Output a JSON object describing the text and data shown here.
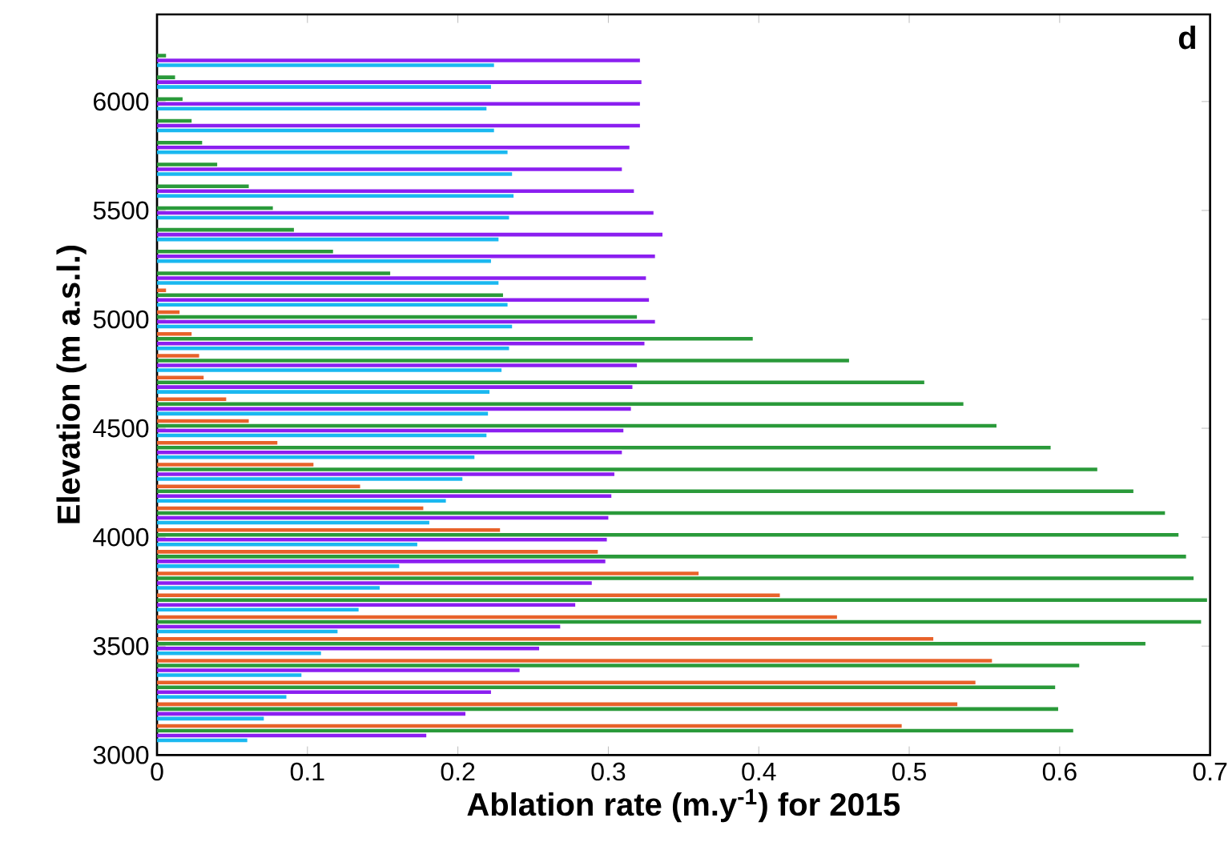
{
  "chart_data": {
    "type": "bar",
    "orientation": "horizontal",
    "xlabel": "Ablation rate (m.y$^{-1}$) for 2015",
    "ylabel": "Elevation (m a.s.l.)",
    "annotations": [
      "d"
    ],
    "x": [
      3100,
      3200,
      3300,
      3400,
      3500,
      3600,
      3700,
      3800,
      3900,
      4000,
      4100,
      4200,
      4300,
      4400,
      4500,
      4600,
      4700,
      4800,
      4900,
      5000,
      5100,
      5200,
      5300,
      5400,
      5500,
      5600,
      5700,
      5800,
      5900,
      6000,
      6100,
      6200
    ],
    "series": [
      {
        "color": "#1ab8f0",
        "values": [
          0.06,
          0.071,
          0.086,
          0.096,
          0.109,
          0.12,
          0.134,
          0.148,
          0.161,
          0.173,
          0.181,
          0.192,
          0.203,
          0.211,
          0.219,
          0.22,
          0.221,
          0.229,
          0.234,
          0.236,
          0.233,
          0.227,
          0.222,
          0.227,
          0.234,
          0.237,
          0.236,
          0.233,
          0.224,
          0.219,
          0.222,
          0.224
        ]
      },
      {
        "color": "#8b1ff0",
        "values": [
          0.179,
          0.205,
          0.222,
          0.241,
          0.254,
          0.268,
          0.278,
          0.289,
          0.298,
          0.299,
          0.3,
          0.302,
          0.304,
          0.309,
          0.31,
          0.315,
          0.316,
          0.319,
          0.324,
          0.331,
          0.327,
          0.325,
          0.331,
          0.336,
          0.33,
          0.317,
          0.309,
          0.314,
          0.321,
          0.321,
          0.322,
          0.321
        ]
      },
      {
        "color": "#2a9a3a",
        "values": [
          0.609,
          0.599,
          0.597,
          0.613,
          0.657,
          0.694,
          0.698,
          0.689,
          0.684,
          0.679,
          0.67,
          0.649,
          0.625,
          0.594,
          0.558,
          0.536,
          0.51,
          0.46,
          0.396,
          0.319,
          0.23,
          0.155,
          0.117,
          0.091,
          0.077,
          0.061,
          0.04,
          0.03,
          0.023,
          0.017,
          0.012,
          0.006
        ]
      },
      {
        "color": "#e8622a",
        "values": [
          0.495,
          0.532,
          0.544,
          0.555,
          0.516,
          0.452,
          0.414,
          0.36,
          0.293,
          0.228,
          0.177,
          0.135,
          0.104,
          0.08,
          0.061,
          0.046,
          0.031,
          0.028,
          0.023,
          0.015,
          0.006,
          null,
          null,
          null,
          null,
          null,
          null,
          null,
          null,
          null,
          null,
          null
        ]
      }
    ],
    "xlim": [
      0,
      0.7
    ],
    "xticks": [
      0,
      0.1,
      0.2,
      0.3,
      0.4,
      0.5,
      0.6,
      0.7
    ],
    "ylim": [
      3000,
      6400
    ],
    "yticks": [
      3000,
      3500,
      4000,
      4500,
      5000,
      5500,
      6000
    ],
    "grid": false
  }
}
